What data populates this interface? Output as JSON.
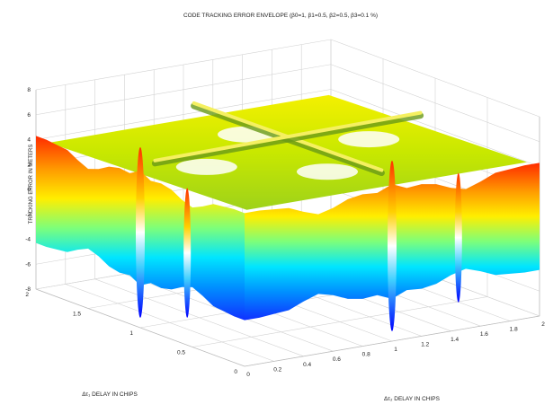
{
  "chart_data": {
    "type": "surface",
    "title": "CODE TRACKING ERROR ENVELOPE (β0=1, β1=0.5, β2=0.5, β3=0.1 %)",
    "zlabel": "TRACKING ERROR IN METERS",
    "xlabel": "Δτ₂ DELAY IN CHIPS",
    "ylabel": "Δτ₁ DELAY IN CHIPS",
    "xlim": [
      0,
      2
    ],
    "ylim": [
      0,
      2
    ],
    "zlim": [
      -8,
      8
    ],
    "z_ticks": [
      "-8",
      "-6",
      "-4",
      "-2",
      "0",
      "2",
      "4",
      "6",
      "8"
    ],
    "x_ticks": [
      "0",
      "0.2",
      "0.4",
      "0.6",
      "0.8",
      "1",
      "1.2",
      "1.4",
      "1.6",
      "1.8",
      "2"
    ],
    "y_ticks": [
      "0",
      "0.5",
      "1",
      "1.5",
      "2"
    ],
    "grid": true,
    "colormap": "jet",
    "colors": [
      "#00008f",
      "#0000ff",
      "#00ffff",
      "#ffff00",
      "#ff8000",
      "#ff0000",
      "#800000"
    ],
    "envelope_upper_m": 4.3,
    "envelope_lower_m": -4.3,
    "dip_delays_chips": [
      1.0
    ],
    "sample_profile": {
      "description_keys": [
        "delay_chips",
        "upper_m",
        "lower_m"
      ],
      "delay_chips": [
        0,
        0.1,
        0.2,
        0.3,
        0.4,
        0.5,
        0.6,
        0.7,
        0.8,
        0.9,
        1.0,
        1.1,
        1.2,
        1.3,
        1.4,
        1.5,
        1.6,
        1.7,
        1.8,
        1.9,
        2.0
      ],
      "upper_m": [
        4.3,
        4.3,
        4.2,
        4.1,
        3.6,
        3.2,
        3.5,
        4.0,
        4.2,
        4.1,
        6.5,
        4.1,
        4.2,
        4.0,
        3.5,
        3.2,
        3.6,
        4.1,
        4.2,
        4.3,
        4.3
      ],
      "lower_m": [
        -4.3,
        -4.3,
        -4.2,
        -4.1,
        -3.6,
        -3.2,
        -3.5,
        -4.0,
        -4.2,
        -4.1,
        -7.0,
        -4.1,
        -4.2,
        -4.0,
        -3.5,
        -3.2,
        -3.6,
        -4.1,
        -4.2,
        -4.3,
        -4.3
      ]
    }
  }
}
